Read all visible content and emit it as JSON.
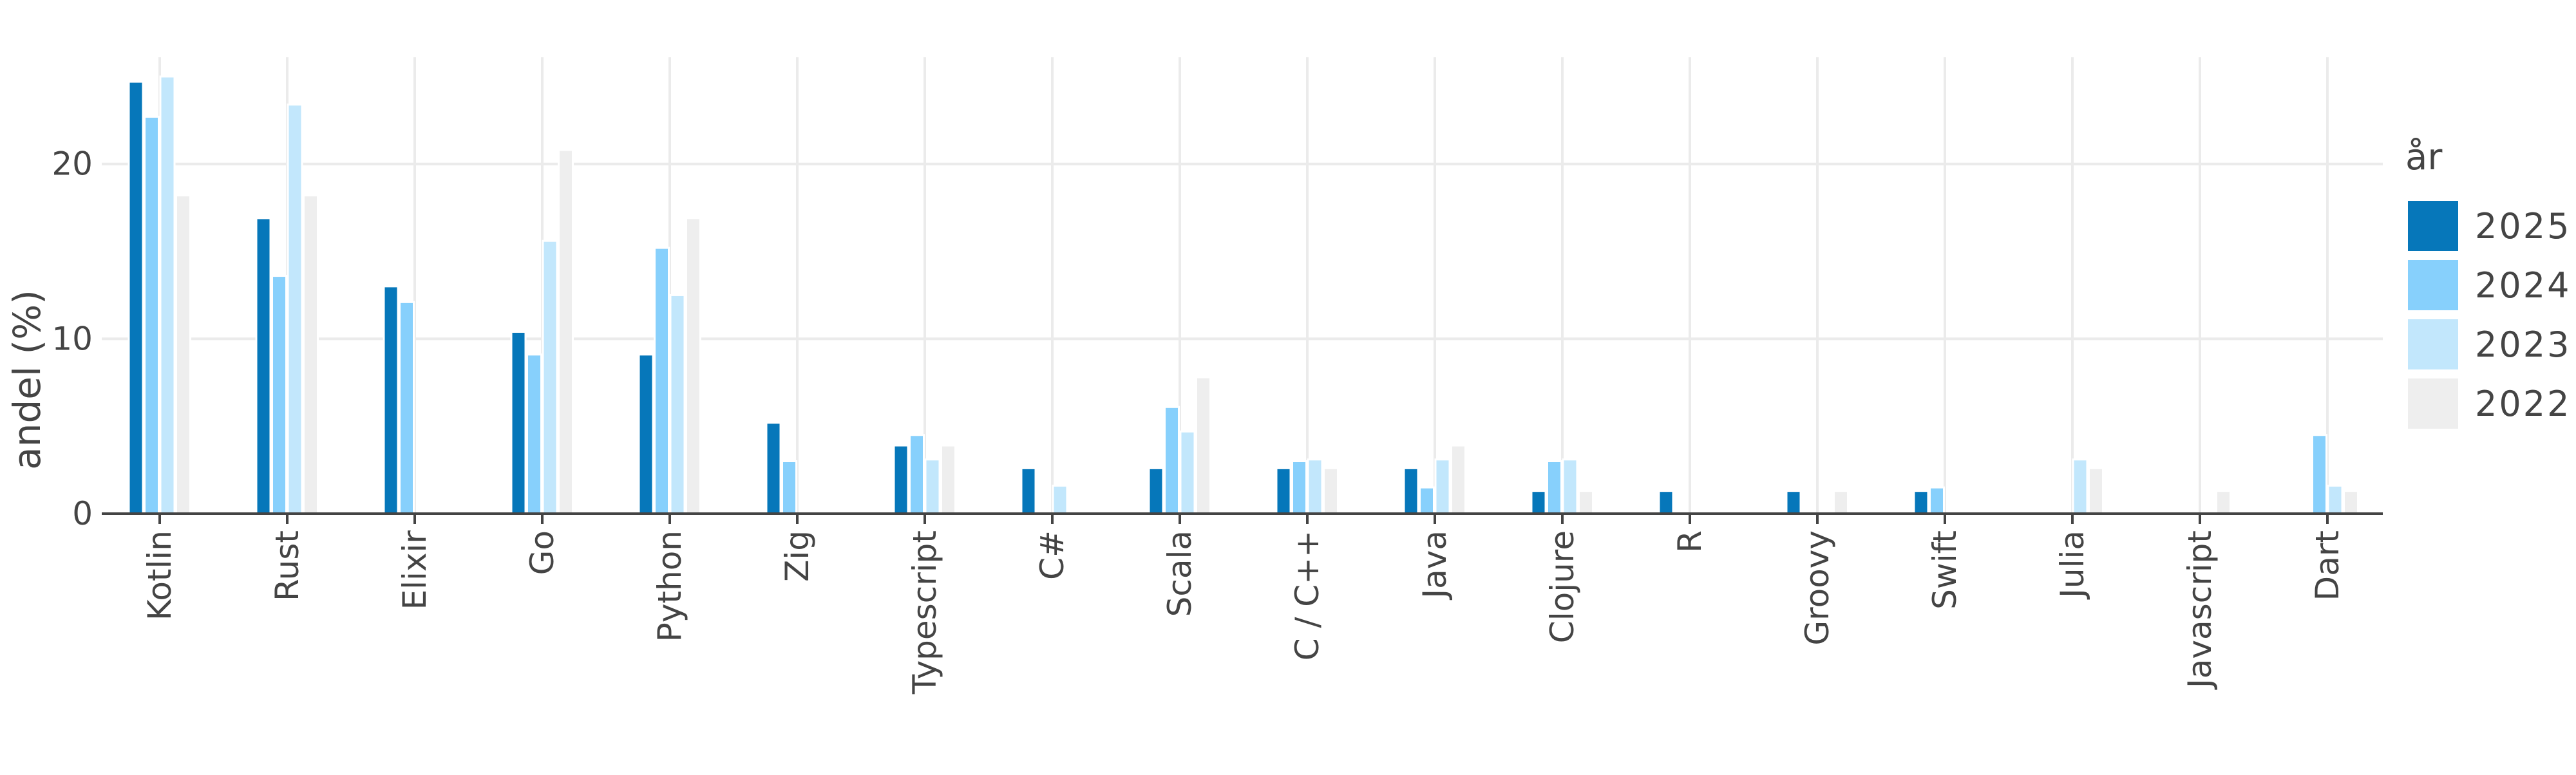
{
  "chart_data": {
    "type": "bar",
    "title": "",
    "xlabel": "",
    "ylabel": "andel (%)",
    "ylim": [
      0,
      26.1
    ],
    "yticks": [
      "0",
      "10",
      "20"
    ],
    "grid": true,
    "legend": {
      "title": "år",
      "position": "right"
    },
    "categories": [
      "Kotlin",
      "Rust",
      "Elixir",
      "Go",
      "Python",
      "Zig",
      "Typescript",
      "C#",
      "Scala",
      "C / C++",
      "Java",
      "Clojure",
      "R",
      "Groovy",
      "Swift",
      "Julia",
      "Javascript",
      "Dart"
    ],
    "series": [
      {
        "name": "2025",
        "color": "#0677BA",
        "values": [
          24.7,
          16.9,
          13.0,
          10.4,
          9.1,
          5.2,
          3.9,
          2.6,
          2.6,
          2.6,
          2.6,
          1.3,
          1.3,
          1.3,
          1.3,
          0,
          0,
          0
        ]
      },
      {
        "name": "2024",
        "color": "#87D0FC",
        "values": [
          22.7,
          13.6,
          12.1,
          9.1,
          15.2,
          3.0,
          4.5,
          0,
          6.1,
          3.0,
          1.5,
          3.0,
          0,
          0,
          1.5,
          0,
          0,
          4.5
        ]
      },
      {
        "name": "2023",
        "color": "#C2E7FC",
        "values": [
          25.0,
          23.4,
          0,
          15.6,
          12.5,
          0,
          3.1,
          1.6,
          4.7,
          3.1,
          3.1,
          3.1,
          0,
          0,
          0,
          3.1,
          0,
          1.6
        ]
      },
      {
        "name": "2022",
        "color": "#EEEEEE",
        "values": [
          18.2,
          18.2,
          0,
          20.8,
          16.9,
          0,
          3.9,
          0,
          7.8,
          2.6,
          3.9,
          1.3,
          0,
          1.3,
          0,
          2.6,
          1.3,
          1.3
        ]
      }
    ]
  }
}
